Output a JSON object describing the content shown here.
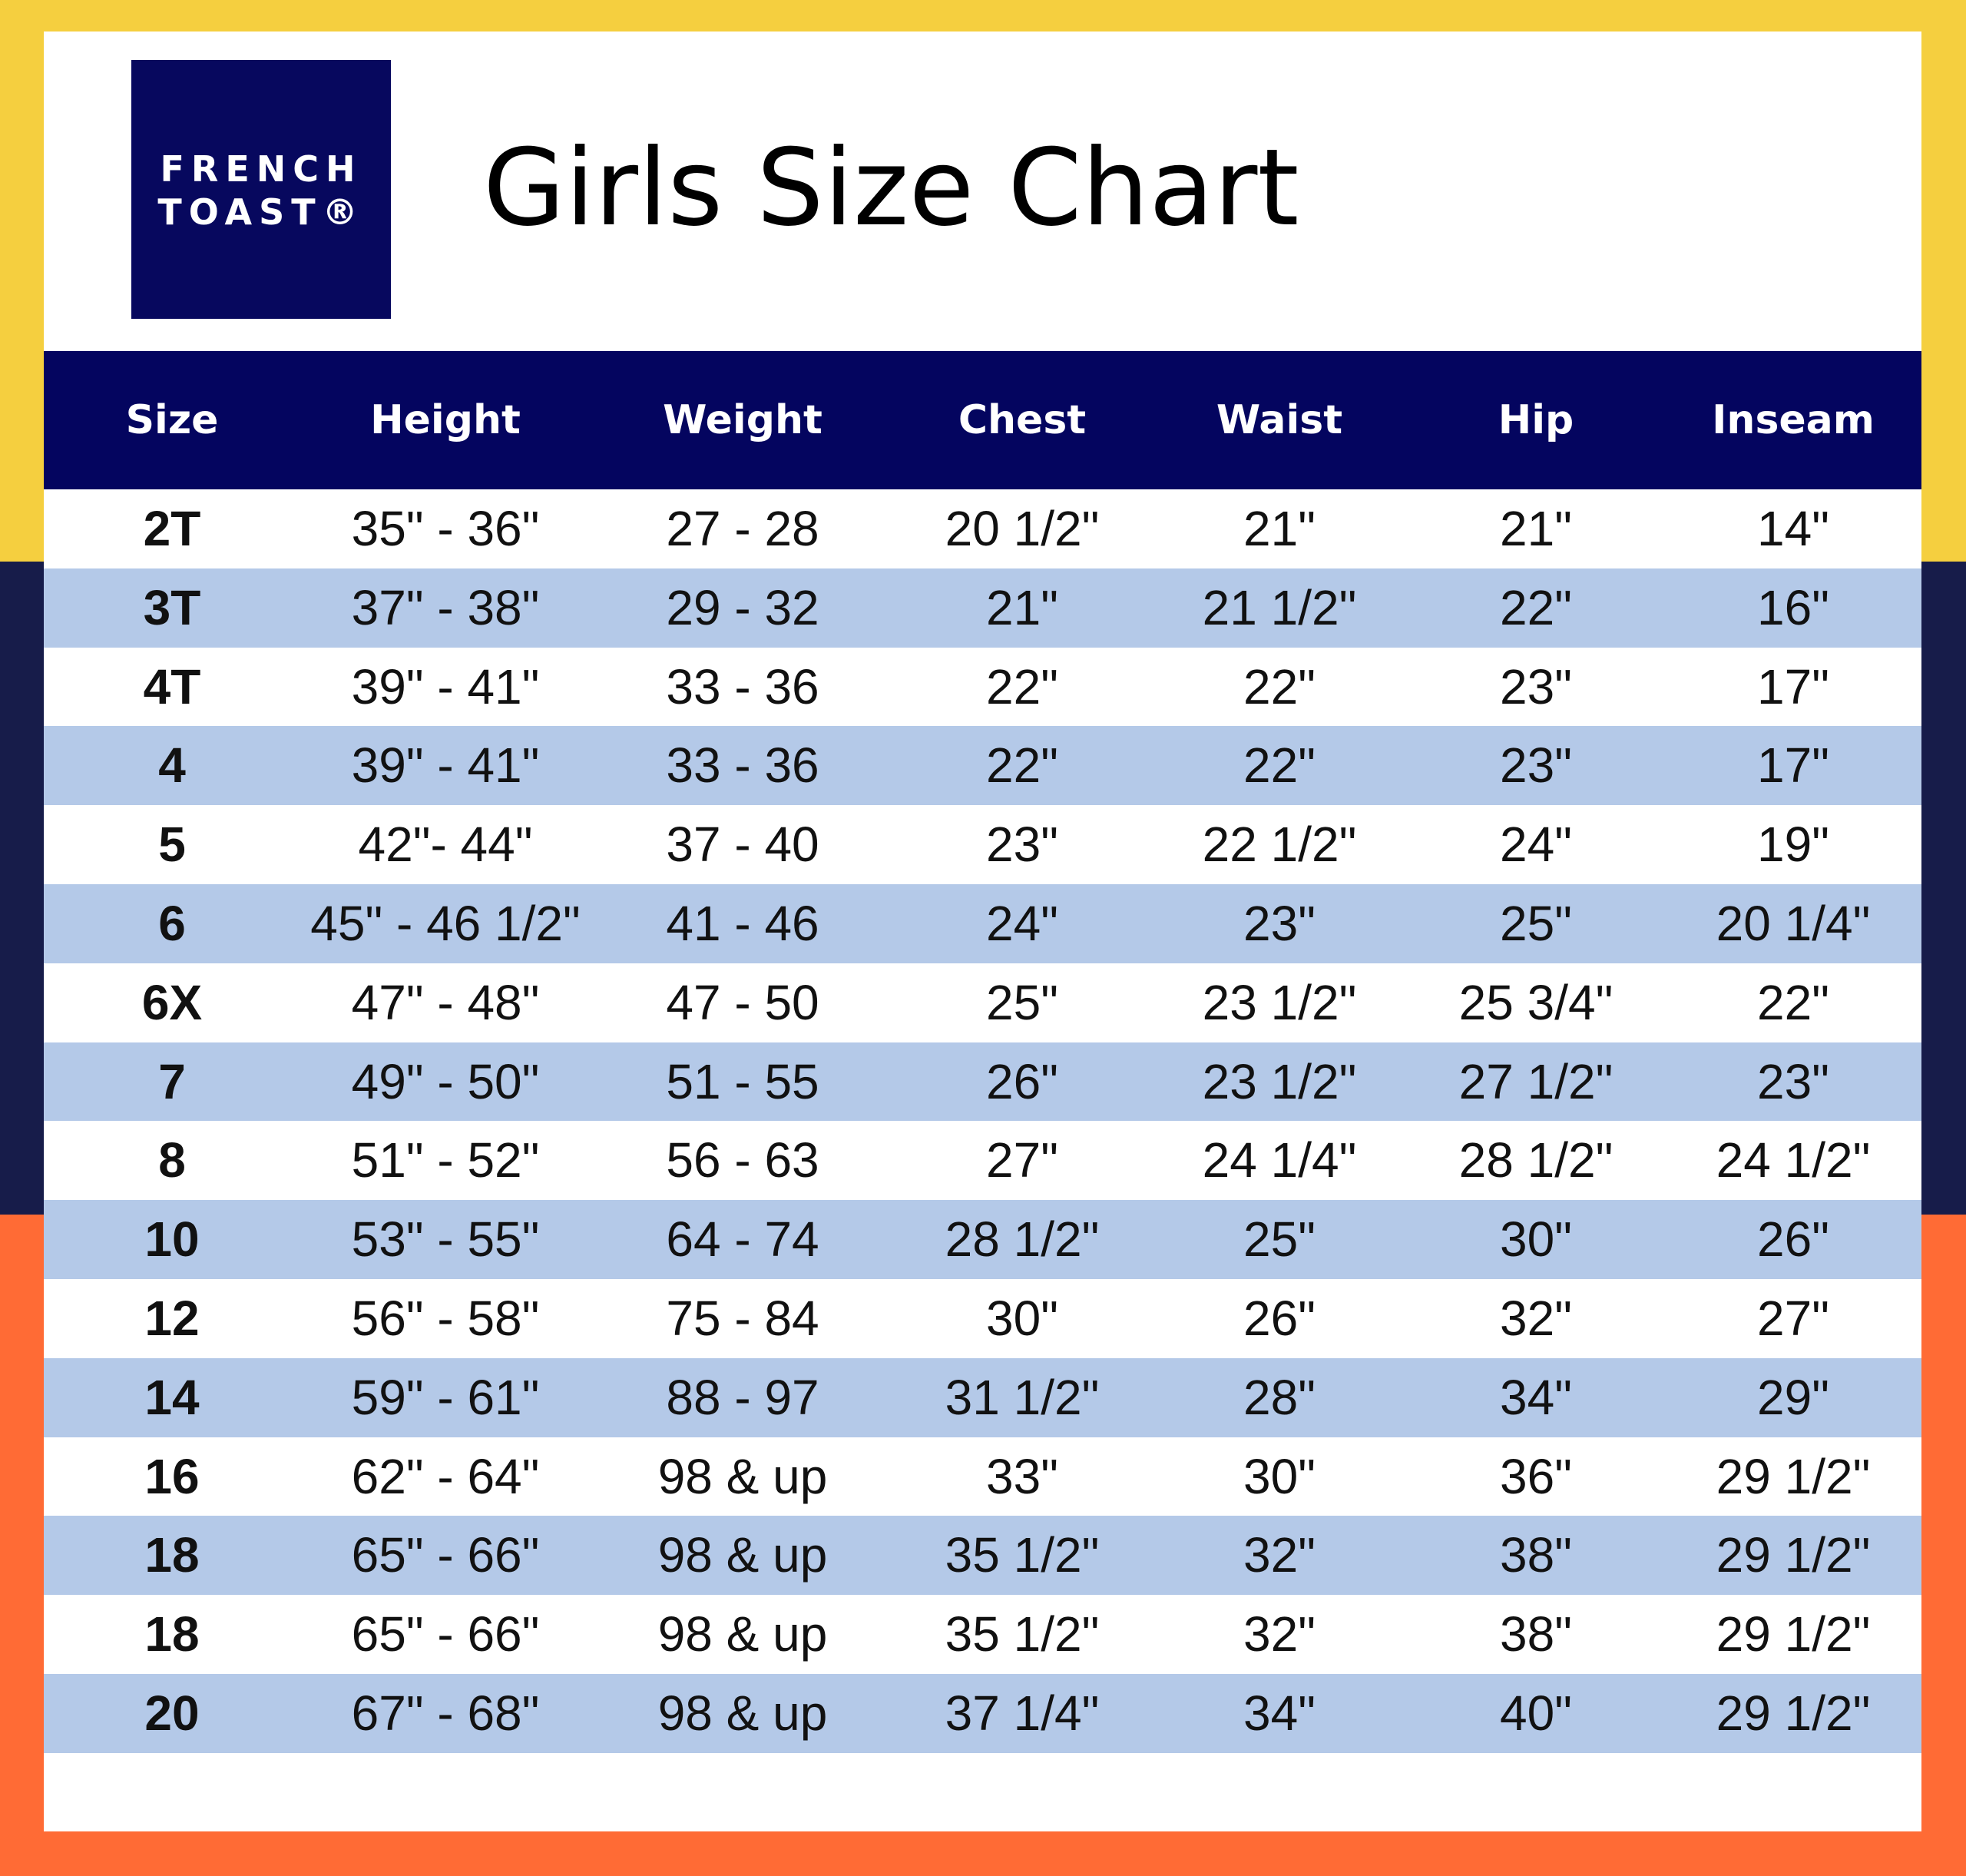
{
  "logo": {
    "lines": [
      "FRENCH",
      "TOAST®"
    ]
  },
  "header": {
    "title": "Girls Size Chart"
  },
  "table": {
    "columns": [
      "Size",
      "Height",
      "Weight",
      "Chest",
      "Waist",
      "Hip",
      "Inseam"
    ],
    "rows": [
      [
        "2T",
        "35\" - 36\"",
        "27 - 28",
        "20 1/2\"",
        "21\"",
        "21\"",
        "14\""
      ],
      [
        "3T",
        "37\" - 38\"",
        "29 - 32",
        "21\"",
        "21 1/2\"",
        "22\"",
        "16\""
      ],
      [
        "4T",
        "39\" - 41\"",
        "33 - 36",
        "22\"",
        "22\"",
        "23\"",
        "17\""
      ],
      [
        "4",
        "39\" - 41\"",
        "33 - 36",
        "22\"",
        "22\"",
        "23\"",
        "17\""
      ],
      [
        "5",
        "42\"- 44\"",
        "37 - 40",
        "23\"",
        "22 1/2\"",
        "24\"",
        "19\""
      ],
      [
        "6",
        "45\" - 46 1/2\"",
        "41 - 46",
        "24\"",
        "23\"",
        "25\"",
        "20 1/4\""
      ],
      [
        "6X",
        "47\" - 48\"",
        "47 - 50",
        "25\"",
        "23 1/2\"",
        "25 3/4\"",
        "22\""
      ],
      [
        "7",
        "49\" - 50\"",
        "51 - 55",
        "26\"",
        "23 1/2\"",
        "27 1/2\"",
        "23\""
      ],
      [
        "8",
        "51\" - 52\"",
        "56 - 63",
        "27\"",
        "24 1/4\"",
        "28 1/2\"",
        "24 1/2\""
      ],
      [
        "10",
        "53\" - 55\"",
        "64 - 74",
        "28 1/2\"",
        "25\"",
        "30\"",
        "26\""
      ],
      [
        "12",
        "56\" - 58\"",
        "75 - 84",
        "30\"",
        "26\"",
        "32\"",
        "27\""
      ],
      [
        "14",
        "59\" - 61\"",
        "88 - 97",
        "31 1/2\"",
        "28\"",
        "34\"",
        "29\""
      ],
      [
        "16",
        "62\" - 64\"",
        "98 & up",
        "33\"",
        "30\"",
        "36\"",
        "29 1/2\""
      ],
      [
        "18",
        "65\" - 66\"",
        "98 & up",
        "35 1/2\"",
        "32\"",
        "38\"",
        "29 1/2\""
      ],
      [
        "18",
        "65\" - 66\"",
        "98 & up",
        "35 1/2\"",
        "32\"",
        "38\"",
        "29 1/2\""
      ],
      [
        "20",
        "67\" - 68\"",
        "98 & up",
        "37 1/4\"",
        "34\"",
        "40\"",
        "29 1/2\""
      ]
    ]
  }
}
